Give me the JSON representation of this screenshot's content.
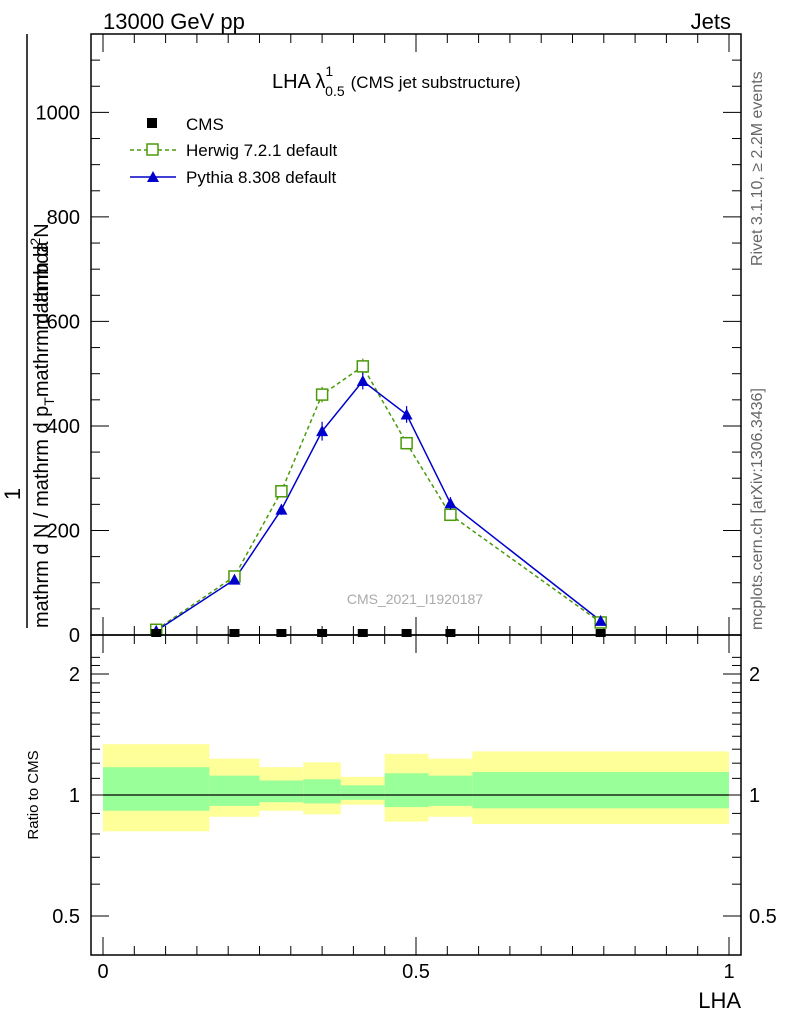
{
  "header": {
    "left": "13000 GeV pp",
    "right": "Jets"
  },
  "side_labels": {
    "rivet": "Rivet 3.1.10, ≥ 2.2M events",
    "mcplots": "mcplots.cern.ch [arXiv:1306.3436]"
  },
  "watermark": "CMS_2021_I1920187",
  "main_title": {
    "prefix": "LHA λ",
    "sup": "1",
    "sub": "0.5",
    "suffix": "(CMS jet substructure)"
  },
  "ylabel": {
    "numerator": "1",
    "denominator": "mathrm d N / mathrm d p",
    "denominator_sub": "T",
    "denominator_end": "mathrm d lambda",
    "deriv_num": "mathrm d",
    "deriv_num_sup": "2",
    "deriv_num_end": "N",
    "deriv_den": "mathrm d p",
    "deriv_den_sub": "T",
    "deriv_den_end": "mathrm d lambda"
  },
  "ratio_ylabel": "Ratio to CMS",
  "xlabel": "LHA",
  "legend": [
    {
      "label": "CMS",
      "color": "#000000",
      "marker": "square-filled"
    },
    {
      "label": "Herwig 7.2.1 default",
      "color": "#4a9a0a",
      "marker": "square-open"
    },
    {
      "label": "Pythia 8.308 default",
      "color": "#0000cc",
      "marker": "triangle-filled"
    }
  ],
  "chart_data": {
    "type": "line",
    "xlim": [
      -0.02,
      1.02
    ],
    "ylim": [
      0,
      1150
    ],
    "ratio_ylim": [
      0.35,
      2.3
    ],
    "x_ticks": [
      "0",
      "0.5",
      "1"
    ],
    "y_ticks": [
      "0",
      "200",
      "400",
      "600",
      "800",
      "1000"
    ],
    "ratio_ticks": [
      "0.5",
      "1",
      "2"
    ],
    "cms": {
      "x": [
        0.085,
        0.21,
        0.285,
        0.35,
        0.415,
        0.485,
        0.555,
        0.795
      ],
      "y": [
        0,
        0,
        0,
        0,
        0,
        0,
        0,
        0
      ]
    },
    "series": [
      {
        "name": "Herwig 7.2.1 default",
        "x": [
          0.085,
          0.21,
          0.285,
          0.35,
          0.415,
          0.485,
          0.555,
          0.795
        ],
        "y": [
          10,
          112,
          275,
          460,
          514,
          367,
          230,
          24
        ],
        "err": [
          2,
          5,
          10,
          15,
          15,
          12,
          8,
          4
        ]
      },
      {
        "name": "Pythia 8.308 default",
        "x": [
          0.085,
          0.21,
          0.285,
          0.35,
          0.415,
          0.485,
          0.555,
          0.795
        ],
        "y": [
          8,
          106,
          240,
          390,
          486,
          422,
          252,
          27
        ],
        "err": [
          2,
          6,
          10,
          18,
          16,
          16,
          12,
          4
        ]
      }
    ],
    "ratio_bands": [
      {
        "x0": 0.0,
        "x1": 0.17,
        "inner": [
          0.87,
          1.23
        ],
        "outer": [
          0.7,
          1.42
        ]
      },
      {
        "x0": 0.17,
        "x1": 0.25,
        "inner": [
          0.91,
          1.16
        ],
        "outer": [
          0.82,
          1.3
        ]
      },
      {
        "x0": 0.25,
        "x1": 0.32,
        "inner": [
          0.94,
          1.12
        ],
        "outer": [
          0.87,
          1.23
        ]
      },
      {
        "x0": 0.32,
        "x1": 0.38,
        "inner": [
          0.93,
          1.13
        ],
        "outer": [
          0.84,
          1.27
        ]
      },
      {
        "x0": 0.38,
        "x1": 0.45,
        "inner": [
          0.96,
          1.08
        ],
        "outer": [
          0.92,
          1.15
        ]
      },
      {
        "x0": 0.45,
        "x1": 0.52,
        "inner": [
          0.9,
          1.18
        ],
        "outer": [
          0.78,
          1.34
        ]
      },
      {
        "x0": 0.52,
        "x1": 0.59,
        "inner": [
          0.91,
          1.16
        ],
        "outer": [
          0.82,
          1.3
        ]
      },
      {
        "x0": 0.59,
        "x1": 1.0,
        "inner": [
          0.89,
          1.19
        ],
        "outer": [
          0.76,
          1.36
        ]
      }
    ],
    "band_colors": {
      "inner": "#99ff99",
      "outer": "#ffff99"
    }
  }
}
